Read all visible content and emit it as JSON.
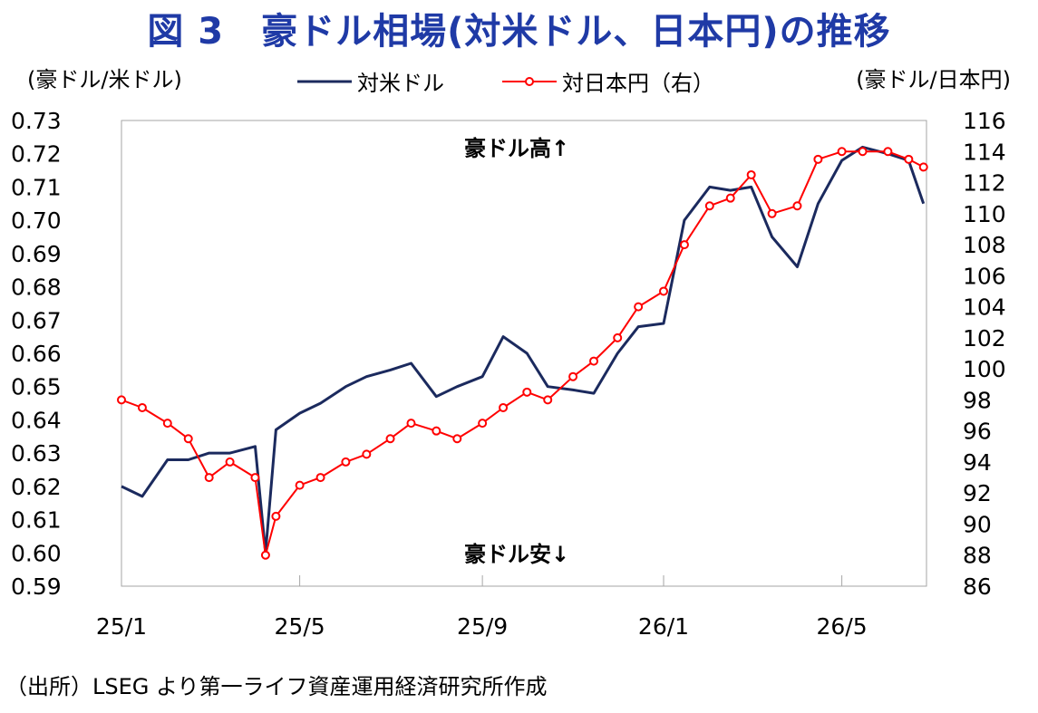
{
  "title": "図 3　豪ドル相場(対米ドル、日本円)の推移",
  "source": "（出所）LSEG より第一ライフ資産運用経済研究所作成",
  "colors": {
    "title": "#1f3aa6",
    "usd": "#1b2a5e",
    "jpy": "#ff0000"
  },
  "chart_data": {
    "type": "line",
    "left_axis": {
      "label": "(豪ドル/米ドル)",
      "ylim": [
        0.59,
        0.73
      ],
      "ticks": [
        "0.73",
        "0.72",
        "0.71",
        "0.70",
        "0.69",
        "0.68",
        "0.67",
        "0.66",
        "0.65",
        "0.64",
        "0.63",
        "0.62",
        "0.61",
        "0.60",
        "0.59"
      ]
    },
    "right_axis": {
      "label": "(豪ドル/日本円)",
      "ylim": [
        86,
        116
      ],
      "ticks": [
        "116",
        "114",
        "112",
        "110",
        "108",
        "106",
        "104",
        "102",
        "100",
        "98",
        "96",
        "94",
        "92",
        "90",
        "88",
        "86"
      ]
    },
    "x_axis": {
      "ticks": [
        "25/1",
        "25/5",
        "25/9",
        "26/1",
        "26/5"
      ]
    },
    "legend_position": "top",
    "annotations": [
      "豪ドル高↑",
      "豪ドル安↓"
    ],
    "series": [
      {
        "name": "対米ドル",
        "axis": "left",
        "x": [
          "2025-01-01",
          "2025-01-15",
          "2025-02-01",
          "2025-02-15",
          "2025-03-01",
          "2025-03-15",
          "2025-04-01",
          "2025-04-08",
          "2025-04-15",
          "2025-05-01",
          "2025-05-15",
          "2025-06-01",
          "2025-06-15",
          "2025-07-01",
          "2025-07-15",
          "2025-08-01",
          "2025-08-15",
          "2025-09-01",
          "2025-09-15",
          "2025-10-01",
          "2025-10-15",
          "2025-11-01",
          "2025-11-15",
          "2025-12-01",
          "2025-12-15",
          "2026-01-01",
          "2026-01-15",
          "2026-02-01",
          "2026-02-15",
          "2026-03-01",
          "2026-03-15",
          "2026-04-01",
          "2026-04-15",
          "2026-05-01",
          "2026-05-15",
          "2026-06-01",
          "2026-06-15",
          "2026-06-25"
        ],
        "values": [
          0.62,
          0.617,
          0.628,
          0.628,
          0.63,
          0.63,
          0.632,
          0.6,
          0.637,
          0.642,
          0.645,
          0.65,
          0.653,
          0.655,
          0.657,
          0.647,
          0.65,
          0.653,
          0.665,
          0.66,
          0.65,
          0.649,
          0.648,
          0.66,
          0.668,
          0.669,
          0.7,
          0.71,
          0.709,
          0.71,
          0.695,
          0.686,
          0.705,
          0.718,
          0.722,
          0.72,
          0.718,
          0.705
        ]
      },
      {
        "name": "対日本円（右）",
        "axis": "right",
        "x": [
          "2025-01-01",
          "2025-01-15",
          "2025-02-01",
          "2025-02-15",
          "2025-03-01",
          "2025-03-15",
          "2025-04-01",
          "2025-04-08",
          "2025-04-15",
          "2025-05-01",
          "2025-05-15",
          "2025-06-01",
          "2025-06-15",
          "2025-07-01",
          "2025-07-15",
          "2025-08-01",
          "2025-08-15",
          "2025-09-01",
          "2025-09-15",
          "2025-10-01",
          "2025-10-15",
          "2025-11-01",
          "2025-11-15",
          "2025-12-01",
          "2025-12-15",
          "2026-01-01",
          "2026-01-15",
          "2026-02-01",
          "2026-02-15",
          "2026-03-01",
          "2026-03-15",
          "2026-04-01",
          "2026-04-15",
          "2026-05-01",
          "2026-05-15",
          "2026-06-01",
          "2026-06-15",
          "2026-06-25"
        ],
        "values": [
          98.0,
          97.5,
          96.5,
          95.5,
          93.0,
          94.0,
          93.0,
          88.0,
          90.5,
          92.5,
          93.0,
          94.0,
          94.5,
          95.5,
          96.5,
          96.0,
          95.5,
          96.5,
          97.5,
          98.5,
          98.0,
          99.5,
          100.5,
          102.0,
          104.0,
          105.0,
          108.0,
          110.5,
          111.0,
          112.5,
          110.0,
          110.5,
          113.5,
          114.0,
          114.0,
          114.0,
          113.5,
          113.0
        ]
      }
    ]
  }
}
